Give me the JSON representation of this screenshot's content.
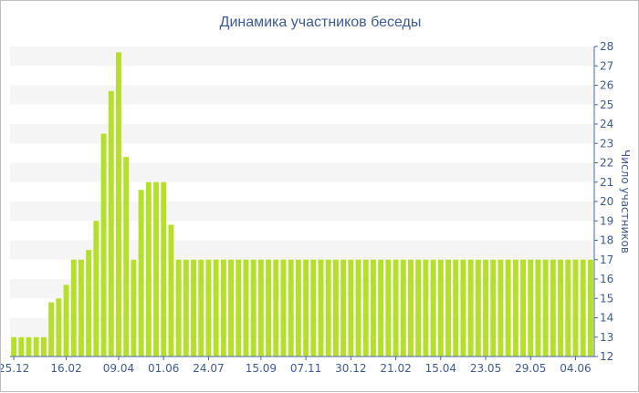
{
  "chart_data": {
    "type": "bar",
    "title": "Динамика участников беседы",
    "xlabel": "",
    "ylabel": "Число участников",
    "ylim": [
      12,
      28
    ],
    "yticks": [
      12,
      13,
      14,
      15,
      16,
      17,
      18,
      19,
      20,
      21,
      22,
      23,
      24,
      25,
      26,
      27,
      28
    ],
    "yaxis_position": "right",
    "grid": "alternating horizontal bands",
    "colors": {
      "bar": "#b5e02a",
      "band": "#f5f5f5",
      "text": "#3d5a99",
      "axis": "#4b68a8"
    },
    "xtick_labels": [
      {
        "label": "25.12",
        "index": 0
      },
      {
        "label": "16.02",
        "index": 7
      },
      {
        "label": "09.04",
        "index": 14
      },
      {
        "label": "01.06",
        "index": 20
      },
      {
        "label": "24.07",
        "index": 26
      },
      {
        "label": "15.09",
        "index": 33
      },
      {
        "label": "07.11",
        "index": 39
      },
      {
        "label": "30.12",
        "index": 45
      },
      {
        "label": "21.02",
        "index": 51
      },
      {
        "label": "15.04",
        "index": 57
      },
      {
        "label": "23.05",
        "index": 63
      },
      {
        "label": "29.05",
        "index": 69
      },
      {
        "label": "04.06",
        "index": 75
      }
    ],
    "values": [
      13,
      13,
      13,
      13,
      13,
      14.8,
      15,
      15.7,
      17,
      17,
      17.5,
      19,
      23.5,
      25.7,
      27.7,
      22.3,
      17,
      20.6,
      21,
      21,
      21,
      18.8,
      17,
      17,
      17,
      17,
      17,
      17,
      17,
      17,
      17,
      17,
      17,
      17,
      17,
      17,
      17,
      17,
      17,
      17,
      17,
      17,
      17,
      17,
      17,
      17,
      17,
      17,
      17,
      17,
      17,
      17,
      17,
      17,
      17,
      17,
      17,
      17,
      17,
      17,
      17,
      17,
      17,
      17,
      17,
      17,
      17,
      17,
      17,
      17,
      17,
      17,
      17,
      17,
      17,
      17,
      17,
      17
    ]
  }
}
